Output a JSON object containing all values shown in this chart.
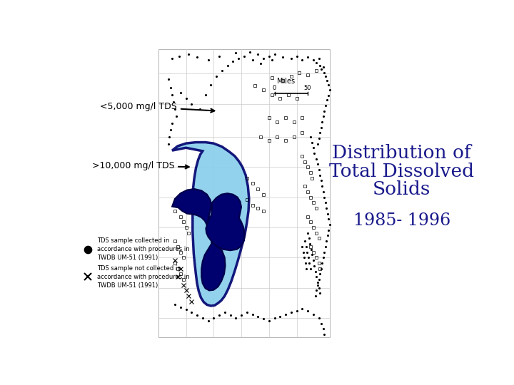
{
  "title_line1": "Distribution of",
  "title_line2": "Total Dissolved",
  "title_line3": "Solids",
  "subtitle": "1985- 1996",
  "title_color": "#1a1a8c",
  "label_tds_low": "<5,000 mg/l TDS",
  "label_tds_high": ">10,000 mg/l TDS",
  "legend_dot_label": "TDS sample collected in\naccordance with procedures in\nTWDB UM-51 (1991)",
  "legend_x_label": "TDS sample not collected in\naccordance with procedures in\nTWDB UM-51 (1991)",
  "bg_color": "#ffffff",
  "light_blue": "#87ceeb",
  "dark_blue": "#00006e",
  "dark_blue_border": "#00004a",
  "miles_label": "Miles",
  "miles_scale": "50",
  "grid_color": "#cccccc",
  "map_border": "#aaaaaa",
  "text_color": "#000000"
}
